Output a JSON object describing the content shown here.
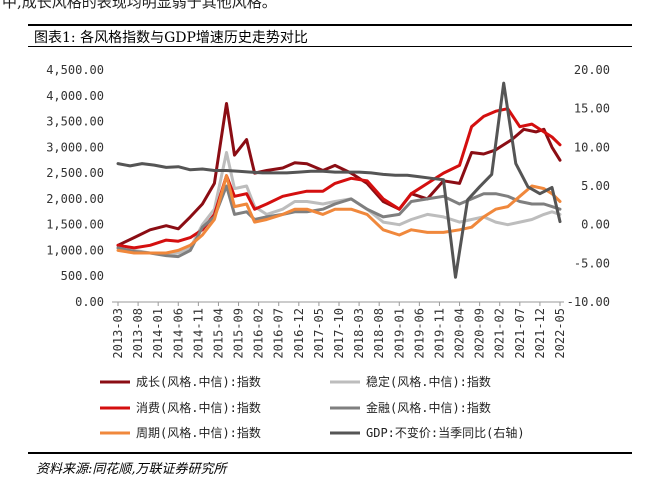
{
  "header": {
    "fragment": "中,成长风格的表现均明显弱于其他风格。",
    "figure_title": "图表1: 各风格指数与GDP增速历史走势对比"
  },
  "footer": {
    "source": "资料来源:同花顺,万联证券研究所"
  },
  "chart_data": {
    "type": "line",
    "title": "图表1: 各风格指数与GDP增速历史走势对比",
    "x_tick_labels": [
      "2013-03",
      "2013-08",
      "2014-01",
      "2014-06",
      "2014-11",
      "2015-04",
      "2015-09",
      "2016-02",
      "2016-07",
      "2016-12",
      "2017-05",
      "2017-10",
      "2018-03",
      "2018-08",
      "2019-01",
      "2019-06",
      "2019-11",
      "2020-04",
      "2020-09",
      "2021-02",
      "2021-07",
      "2021-12",
      "2022-05"
    ],
    "y_left": {
      "ylim": [
        0,
        4500
      ],
      "ticks": [
        "0.00",
        "500.00",
        "1,000.00",
        "1,500.00",
        "2,000.00",
        "2,500.00",
        "3,000.00",
        "3,500.00",
        "4,000.00",
        "4,500.00"
      ]
    },
    "y_right": {
      "ylim": [
        -10,
        20
      ],
      "ticks": [
        "-10.00",
        "-5.00",
        "0.00",
        "5.00",
        "10.00",
        "15.00",
        "20.00"
      ]
    },
    "grid": false,
    "legend_position": "bottom",
    "series": [
      {
        "name": "成长(风格.中信):指数",
        "axis": "left",
        "color": "#8b0d14",
        "points": [
          [
            "2013-03",
            1100
          ],
          [
            "2013-07",
            1250
          ],
          [
            "2013-11",
            1400
          ],
          [
            "2014-03",
            1480
          ],
          [
            "2014-06",
            1420
          ],
          [
            "2014-09",
            1650
          ],
          [
            "2014-12",
            1900
          ],
          [
            "2015-03",
            2300
          ],
          [
            "2015-06",
            3850
          ],
          [
            "2015-08",
            2850
          ],
          [
            "2015-11",
            3150
          ],
          [
            "2016-01",
            2500
          ],
          [
            "2016-04",
            2550
          ],
          [
            "2016-08",
            2600
          ],
          [
            "2016-11",
            2700
          ],
          [
            "2017-02",
            2680
          ],
          [
            "2017-06",
            2550
          ],
          [
            "2017-09",
            2650
          ],
          [
            "2018-01",
            2500
          ],
          [
            "2018-05",
            2300
          ],
          [
            "2018-09",
            1950
          ],
          [
            "2019-01",
            1800
          ],
          [
            "2019-04",
            2100
          ],
          [
            "2019-08",
            2000
          ],
          [
            "2019-12",
            2350
          ],
          [
            "2020-04",
            2300
          ],
          [
            "2020-07",
            2900
          ],
          [
            "2020-10",
            2870
          ],
          [
            "2021-01",
            2950
          ],
          [
            "2021-02",
            3000
          ],
          [
            "2021-05",
            3150
          ],
          [
            "2021-08",
            3350
          ],
          [
            "2021-11",
            3300
          ],
          [
            "2022-01",
            3350
          ],
          [
            "2022-03",
            3000
          ],
          [
            "2022-05",
            2750
          ]
        ]
      },
      {
        "name": "稳定(风格.中信):指数",
        "axis": "left",
        "color": "#bdbdbd",
        "points": [
          [
            "2013-03",
            1050
          ],
          [
            "2013-07",
            1000
          ],
          [
            "2013-11",
            950
          ],
          [
            "2014-03",
            920
          ],
          [
            "2014-06",
            950
          ],
          [
            "2014-09",
            1050
          ],
          [
            "2014-12",
            1500
          ],
          [
            "2015-03",
            1800
          ],
          [
            "2015-06",
            2900
          ],
          [
            "2015-08",
            2200
          ],
          [
            "2015-11",
            2250
          ],
          [
            "2016-01",
            1850
          ],
          [
            "2016-04",
            1700
          ],
          [
            "2016-08",
            1800
          ],
          [
            "2016-11",
            1950
          ],
          [
            "2017-02",
            1950
          ],
          [
            "2017-06",
            1900
          ],
          [
            "2017-09",
            1950
          ],
          [
            "2018-01",
            2000
          ],
          [
            "2018-05",
            1800
          ],
          [
            "2018-09",
            1550
          ],
          [
            "2019-01",
            1500
          ],
          [
            "2019-04",
            1600
          ],
          [
            "2019-08",
            1700
          ],
          [
            "2019-12",
            1650
          ],
          [
            "2020-04",
            1550
          ],
          [
            "2020-07",
            1600
          ],
          [
            "2020-10",
            1650
          ],
          [
            "2021-01",
            1550
          ],
          [
            "2021-04",
            1500
          ],
          [
            "2021-07",
            1550
          ],
          [
            "2021-10",
            1600
          ],
          [
            "2022-01",
            1700
          ],
          [
            "2022-03",
            1750
          ],
          [
            "2022-05",
            1700
          ]
        ]
      },
      {
        "name": "消费(风格.中信):指数",
        "axis": "left",
        "color": "#d40f0f",
        "points": [
          [
            "2013-03",
            1100
          ],
          [
            "2013-07",
            1050
          ],
          [
            "2013-11",
            1100
          ],
          [
            "2014-03",
            1200
          ],
          [
            "2014-06",
            1180
          ],
          [
            "2014-09",
            1250
          ],
          [
            "2014-12",
            1400
          ],
          [
            "2015-03",
            1700
          ],
          [
            "2015-06",
            2450
          ],
          [
            "2015-08",
            2050
          ],
          [
            "2015-11",
            2100
          ],
          [
            "2016-01",
            1800
          ],
          [
            "2016-04",
            1900
          ],
          [
            "2016-08",
            2050
          ],
          [
            "2016-11",
            2100
          ],
          [
            "2017-02",
            2150
          ],
          [
            "2017-06",
            2150
          ],
          [
            "2017-09",
            2300
          ],
          [
            "2018-01",
            2400
          ],
          [
            "2018-05",
            2350
          ],
          [
            "2018-09",
            2000
          ],
          [
            "2019-01",
            1800
          ],
          [
            "2019-04",
            2100
          ],
          [
            "2019-08",
            2300
          ],
          [
            "2019-12",
            2500
          ],
          [
            "2020-04",
            2650
          ],
          [
            "2020-07",
            3400
          ],
          [
            "2020-10",
            3600
          ],
          [
            "2021-01",
            3700
          ],
          [
            "2021-04",
            3750
          ],
          [
            "2021-07",
            3400
          ],
          [
            "2021-10",
            3450
          ],
          [
            "2022-01",
            3300
          ],
          [
            "2022-03",
            3200
          ],
          [
            "2022-05",
            3050
          ]
        ]
      },
      {
        "name": "金融(风格.中信):指数",
        "axis": "left",
        "color": "#7f7f7f",
        "points": [
          [
            "2013-03",
            1050
          ],
          [
            "2013-07",
            980
          ],
          [
            "2013-11",
            950
          ],
          [
            "2014-03",
            900
          ],
          [
            "2014-06",
            880
          ],
          [
            "2014-09",
            1000
          ],
          [
            "2014-12",
            1450
          ],
          [
            "2015-03",
            1650
          ],
          [
            "2015-06",
            2250
          ],
          [
            "2015-08",
            1700
          ],
          [
            "2015-11",
            1750
          ],
          [
            "2016-01",
            1600
          ],
          [
            "2016-04",
            1650
          ],
          [
            "2016-08",
            1700
          ],
          [
            "2016-11",
            1750
          ],
          [
            "2017-02",
            1750
          ],
          [
            "2017-06",
            1800
          ],
          [
            "2017-09",
            1900
          ],
          [
            "2018-01",
            2000
          ],
          [
            "2018-05",
            1800
          ],
          [
            "2018-09",
            1650
          ],
          [
            "2019-01",
            1700
          ],
          [
            "2019-04",
            1950
          ],
          [
            "2019-08",
            2000
          ],
          [
            "2019-12",
            2050
          ],
          [
            "2020-04",
            1900
          ],
          [
            "2020-07",
            2000
          ],
          [
            "2020-10",
            2100
          ],
          [
            "2021-01",
            2100
          ],
          [
            "2021-04",
            2050
          ],
          [
            "2021-07",
            1950
          ],
          [
            "2021-10",
            1900
          ],
          [
            "2022-01",
            1900
          ],
          [
            "2022-03",
            1850
          ],
          [
            "2022-05",
            1800
          ]
        ]
      },
      {
        "name": "周期(风格.中信):指数",
        "axis": "left",
        "color": "#f0883c",
        "points": [
          [
            "2013-03",
            1000
          ],
          [
            "2013-07",
            950
          ],
          [
            "2013-11",
            950
          ],
          [
            "2014-03",
            950
          ],
          [
            "2014-06",
            1000
          ],
          [
            "2014-09",
            1100
          ],
          [
            "2014-12",
            1300
          ],
          [
            "2015-03",
            1600
          ],
          [
            "2015-06",
            2450
          ],
          [
            "2015-08",
            1850
          ],
          [
            "2015-11",
            1900
          ],
          [
            "2016-01",
            1550
          ],
          [
            "2016-04",
            1600
          ],
          [
            "2016-08",
            1700
          ],
          [
            "2016-11",
            1800
          ],
          [
            "2017-02",
            1800
          ],
          [
            "2017-06",
            1700
          ],
          [
            "2017-09",
            1800
          ],
          [
            "2018-01",
            1800
          ],
          [
            "2018-05",
            1700
          ],
          [
            "2018-09",
            1400
          ],
          [
            "2019-01",
            1300
          ],
          [
            "2019-04",
            1400
          ],
          [
            "2019-08",
            1350
          ],
          [
            "2019-12",
            1350
          ],
          [
            "2020-04",
            1400
          ],
          [
            "2020-07",
            1450
          ],
          [
            "2020-10",
            1650
          ],
          [
            "2021-01",
            1800
          ],
          [
            "2021-04",
            1850
          ],
          [
            "2021-07",
            2050
          ],
          [
            "2021-10",
            2250
          ],
          [
            "2022-01",
            2200
          ],
          [
            "2022-03",
            2100
          ],
          [
            "2022-05",
            1950
          ]
        ]
      },
      {
        "name": "GDP:不变价:当季同比(右轴)",
        "axis": "right",
        "color": "#555555",
        "points": [
          [
            "2013-03",
            7.9
          ],
          [
            "2013-06",
            7.6
          ],
          [
            "2013-09",
            7.9
          ],
          [
            "2013-12",
            7.7
          ],
          [
            "2014-03",
            7.4
          ],
          [
            "2014-06",
            7.5
          ],
          [
            "2014-09",
            7.1
          ],
          [
            "2014-12",
            7.2
          ],
          [
            "2015-03",
            7.0
          ],
          [
            "2015-06",
            7.0
          ],
          [
            "2015-09",
            6.9
          ],
          [
            "2015-12",
            6.8
          ],
          [
            "2016-03",
            6.7
          ],
          [
            "2016-06",
            6.7
          ],
          [
            "2016-09",
            6.7
          ],
          [
            "2016-12",
            6.8
          ],
          [
            "2017-03",
            6.9
          ],
          [
            "2017-06",
            6.9
          ],
          [
            "2017-09",
            6.8
          ],
          [
            "2017-12",
            6.8
          ],
          [
            "2018-03",
            6.8
          ],
          [
            "2018-06",
            6.7
          ],
          [
            "2018-09",
            6.5
          ],
          [
            "2018-12",
            6.4
          ],
          [
            "2019-03",
            6.4
          ],
          [
            "2019-06",
            6.2
          ],
          [
            "2019-09",
            6.0
          ],
          [
            "2019-12",
            5.8
          ],
          [
            "2020-03",
            -6.8
          ],
          [
            "2020-06",
            3.2
          ],
          [
            "2020-09",
            4.9
          ],
          [
            "2020-12",
            6.5
          ],
          [
            "2021-03",
            18.3
          ],
          [
            "2021-06",
            7.9
          ],
          [
            "2021-09",
            4.9
          ],
          [
            "2021-12",
            4.0
          ],
          [
            "2022-03",
            4.8
          ],
          [
            "2022-05",
            0.4
          ]
        ]
      }
    ]
  }
}
